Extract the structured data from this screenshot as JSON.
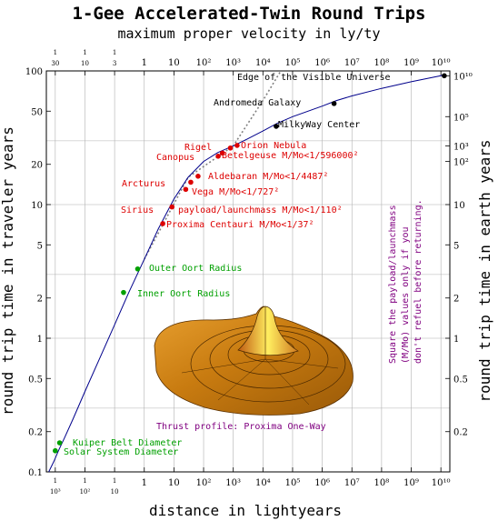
{
  "chart_data": {
    "type": "line",
    "title": "1-Gee Accelerated-Twin Round Trips",
    "subtitle": "maximum proper velocity in ly/ty",
    "xlabel": "distance in lightyears",
    "ylabel_left": "round trip time in traveler years",
    "ylabel_right": "round trip time in earth years",
    "xscale": "log",
    "yscale": "log",
    "xlim": [
      0.0005,
      20000000000
    ],
    "ylim": [
      0.1,
      100
    ],
    "grid": true,
    "bottom_ticks": [
      {
        "value": 0.001,
        "num": "1",
        "den": "10³"
      },
      {
        "value": 0.01,
        "num": "1",
        "den": "10²"
      },
      {
        "value": 0.1,
        "num": "1",
        "den": "10"
      },
      {
        "value": 1,
        "label": "1"
      },
      {
        "value": 10,
        "label": "10"
      },
      {
        "value": 100,
        "label": "10²"
      },
      {
        "value": 1000,
        "label": "10³"
      },
      {
        "value": 10000,
        "label": "10⁴"
      },
      {
        "value": 100000,
        "label": "10⁵"
      },
      {
        "value": 1000000,
        "label": "10⁶"
      },
      {
        "value": 10000000,
        "label": "10⁷"
      },
      {
        "value": 100000000,
        "label": "10⁸"
      },
      {
        "value": 1000000000,
        "label": "10⁹"
      },
      {
        "value": 10000000000,
        "label": "10¹⁰"
      }
    ],
    "top_ticks": [
      {
        "value": 0.001,
        "num": "1",
        "den": "30"
      },
      {
        "value": 0.01,
        "num": "1",
        "den": "10"
      },
      {
        "value": 0.1,
        "num": "1",
        "den": "3"
      },
      {
        "value": 1,
        "label": "1"
      },
      {
        "value": 10,
        "label": "10"
      },
      {
        "value": 100,
        "label": "10²"
      },
      {
        "value": 1000,
        "label": "10³"
      },
      {
        "value": 10000,
        "label": "10⁴"
      },
      {
        "value": 100000,
        "label": "10⁵"
      },
      {
        "value": 1000000,
        "label": "10⁶"
      },
      {
        "value": 10000000,
        "label": "10⁷"
      },
      {
        "value": 100000000,
        "label": "10⁸"
      },
      {
        "value": 1000000000,
        "label": "10⁹"
      },
      {
        "value": 10000000000,
        "label": "10¹⁰"
      }
    ],
    "left_ticks": [
      {
        "value": 0.1,
        "label": "0.1"
      },
      {
        "value": 0.2,
        "label": "0.2"
      },
      {
        "value": 0.5,
        "label": "0.5"
      },
      {
        "value": 1,
        "label": "1"
      },
      {
        "value": 2,
        "label": "2"
      },
      {
        "value": 5,
        "label": "5"
      },
      {
        "value": 10,
        "label": "10"
      },
      {
        "value": 20,
        "label": "20"
      },
      {
        "value": 50,
        "label": "50"
      },
      {
        "value": 100,
        "label": "100"
      }
    ],
    "right_ticks": [
      {
        "value": 0.2,
        "label": "0.2"
      },
      {
        "value": 0.5,
        "label": "0.5"
      },
      {
        "value": 1,
        "label": "1"
      },
      {
        "value": 2,
        "label": "2"
      },
      {
        "value": 5,
        "label": "5"
      },
      {
        "value": 10,
        "label": "10"
      },
      {
        "value": 100,
        "label": "10²"
      },
      {
        "value": 1000,
        "label": "10³"
      },
      {
        "value": 100000,
        "label": "10⁵"
      },
      {
        "value": 10000000000,
        "label": "10¹⁰"
      }
    ],
    "curve": {
      "color": "#00008b",
      "points": [
        [
          0.0006,
          0.1
        ],
        [
          0.0009,
          0.12
        ],
        [
          0.0013,
          0.145
        ],
        [
          0.002,
          0.178
        ],
        [
          0.004,
          0.25
        ],
        [
          0.01,
          0.4
        ],
        [
          0.03,
          0.69
        ],
        [
          0.1,
          1.26
        ],
        [
          0.3,
          2.2
        ],
        [
          1,
          3.9
        ],
        [
          3,
          6.6
        ],
        [
          10,
          11
        ],
        [
          30,
          16
        ],
        [
          100,
          21
        ],
        [
          300,
          24.5
        ],
        [
          1000,
          27.5
        ],
        [
          3000,
          31
        ],
        [
          10000,
          35.5
        ],
        [
          30000,
          40.5
        ],
        [
          100000,
          45.5
        ],
        [
          1000000,
          54.5
        ],
        [
          3000000,
          60
        ],
        [
          10000000,
          65
        ],
        [
          100000000,
          74
        ],
        [
          1000000000,
          83
        ],
        [
          10000000000,
          92
        ],
        [
          13000000000,
          95
        ]
      ]
    },
    "edge_curve": {
      "color": "#808080",
      "points": [
        [
          1,
          3.9
        ],
        [
          30,
          16
        ],
        [
          1000,
          27.5
        ],
        [
          10000,
          60
        ],
        [
          40000,
          115
        ]
      ]
    },
    "points": [
      {
        "name": "Solar System Diameter",
        "x": 0.001,
        "y": 0.144,
        "color": "#00a000",
        "label": "Solar System Diameter"
      },
      {
        "name": "Kuiper Belt Diameter",
        "x": 0.0014,
        "y": 0.165,
        "color": "#00a000",
        "label": "Kuiper Belt Diameter"
      },
      {
        "name": "Inner Oort Radius",
        "x": 0.2,
        "y": 2.2,
        "color": "#00a000",
        "label": "Inner Oort Radius"
      },
      {
        "name": "Outer Oort Radius",
        "x": 0.6,
        "y": 3.3,
        "color": "#00a000",
        "label": "Outer Oort Radius"
      },
      {
        "name": "Proxima Centauri",
        "x": 4.2,
        "y": 7.2,
        "color": "#dd0000",
        "label": "Proxima Centauri M/Mo<1/37²"
      },
      {
        "name": "Sirius",
        "x": 8.6,
        "y": 9.6,
        "color": "#dd0000",
        "label": "Sirius"
      },
      {
        "name": "Vega",
        "x": 25,
        "y": 13,
        "color": "#dd0000",
        "label": "Vega M/Mo<1/727²"
      },
      {
        "name": "Arcturus",
        "x": 37,
        "y": 14.7,
        "color": "#dd0000",
        "label": "Arcturus"
      },
      {
        "name": "Aldebaran",
        "x": 65,
        "y": 16.3,
        "color": "#dd0000",
        "label": "Aldebaran M/Mo<1/4487²"
      },
      {
        "name": "Canopus",
        "x": 310,
        "y": 23,
        "color": "#dd0000",
        "label": "Canopus"
      },
      {
        "name": "Betelgeuse",
        "x": 430,
        "y": 24.3,
        "color": "#dd0000",
        "label": "Betelgeuse M/Mo<1/596000²"
      },
      {
        "name": "Rigel",
        "x": 800,
        "y": 26.5,
        "color": "#dd0000",
        "label": "Rigel"
      },
      {
        "name": "Orion Nebula",
        "x": 1350,
        "y": 27.7,
        "color": "#dd0000",
        "label": "Orion Nebula"
      },
      {
        "name": "MilkyWay Center",
        "x": 28000,
        "y": 38.5,
        "color": "#000000",
        "label": "MilkyWay Center"
      },
      {
        "name": "Andromeda Galaxy",
        "x": 2500000,
        "y": 57,
        "color": "#000000",
        "label": "Andromeda Galaxy"
      },
      {
        "name": "Edge of the Visible Universe",
        "x": 13000000000,
        "y": 92,
        "color": "#000000",
        "label": "Edge of the Visible Universe"
      }
    ],
    "annotations": [
      {
        "text": "payload/launchmass M/Mo<1/110²",
        "color": "#dd0000"
      },
      {
        "text": "Thrust profile: Proxima One-Way",
        "color": "#800080"
      }
    ],
    "side_note": [
      "Square the payload/launchmass",
      "(M/Mo) values only if you",
      "don't refuel before returning."
    ]
  }
}
